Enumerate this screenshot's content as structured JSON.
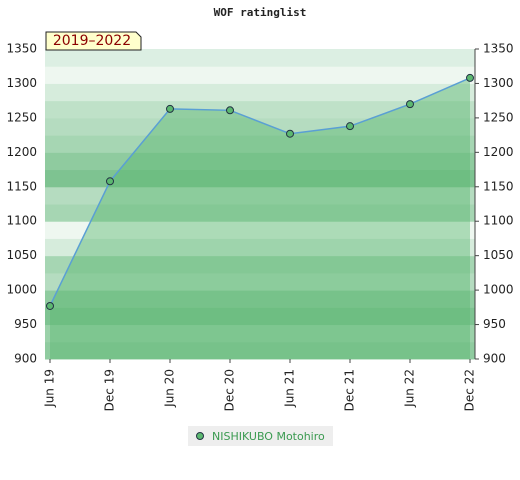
{
  "chart_data": {
    "type": "line",
    "title": "WOF ratinglist",
    "annotation": "2019–2022",
    "categories": [
      "Jun 19",
      "Dec 19",
      "Jun 20",
      "Dec 20",
      "Jun 21",
      "Dec 21",
      "Jun 22",
      "Dec 22"
    ],
    "series": [
      {
        "name": "NISHIKUBO Motohiro",
        "color": "#5a9fd4",
        "marker_color": "#5cb870",
        "values": [
          977,
          1158,
          1263,
          1261,
          1227,
          1238,
          1270,
          1308
        ]
      }
    ],
    "ylim": [
      900,
      1350
    ],
    "yticks": [
      900,
      950,
      1000,
      1050,
      1100,
      1150,
      1200,
      1250,
      1300,
      1350
    ]
  }
}
